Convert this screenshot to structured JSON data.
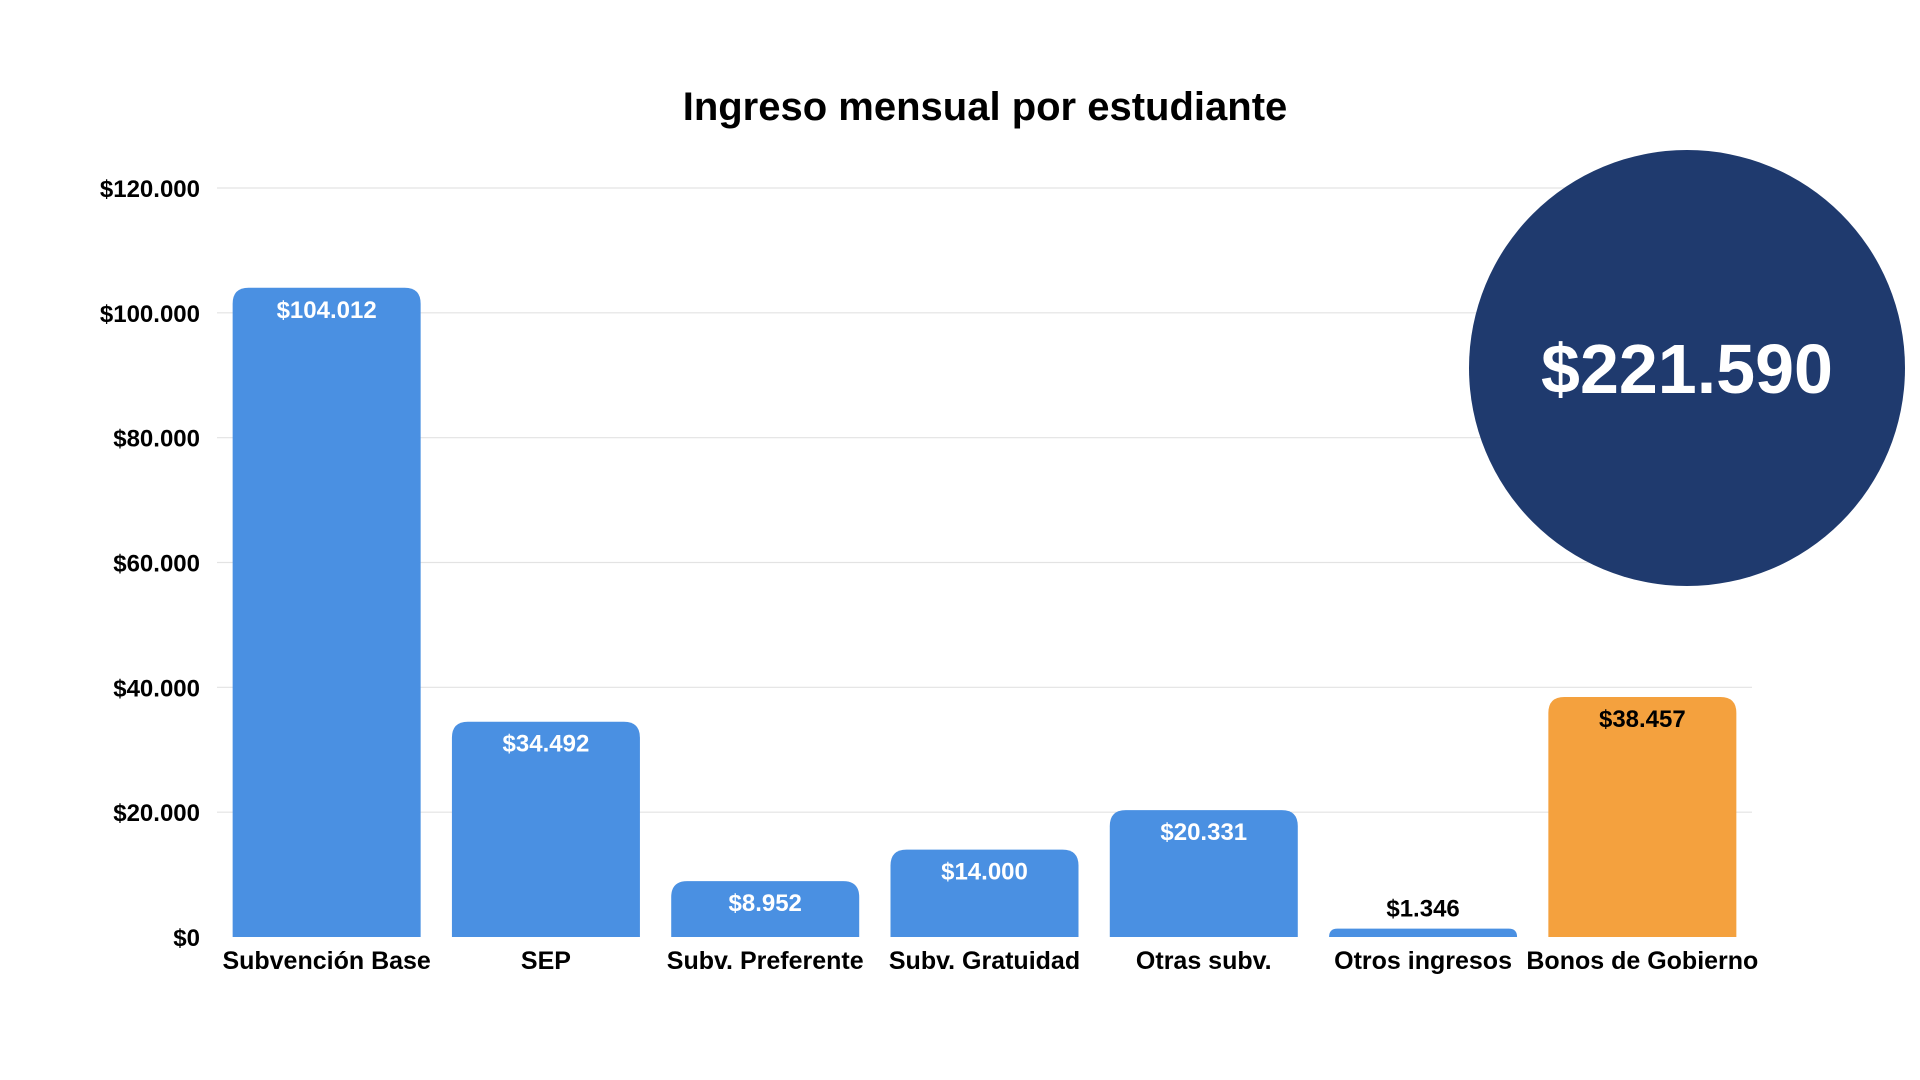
{
  "chart_data": {
    "type": "bar",
    "title": "Ingreso mensual por estudiante",
    "xlabel": "",
    "ylabel": "",
    "ylim": [
      0,
      120000
    ],
    "yticks": [
      "$0",
      "$20.000",
      "$40.000",
      "$60.000",
      "$80.000",
      "$100.000",
      "$120.000"
    ],
    "ytick_values": [
      0,
      20000,
      40000,
      60000,
      80000,
      100000,
      120000
    ],
    "grid": true,
    "categories": [
      "Subvención Base",
      "SEP",
      "Subv. Preferente",
      "Subv. Gratuidad",
      "Otras subv.",
      "Otros ingresos",
      "Bonos de Gobierno"
    ],
    "values": [
      104012,
      34492,
      8952,
      14000,
      20331,
      1346,
      38457
    ],
    "data_labels": [
      "$104.012",
      "$34.492",
      "$8.952",
      "$14.000",
      "$20.331",
      "$1.346",
      "$38.457"
    ],
    "bar_colors": [
      "#4A90E2",
      "#4A90E2",
      "#4A90E2",
      "#4A90E2",
      "#4A90E2",
      "#4A90E2",
      "#F4A13E"
    ],
    "label_colors": [
      "#ffffff",
      "#ffffff",
      "#ffffff",
      "#ffffff",
      "#ffffff",
      "#000000",
      "#000000"
    ],
    "total_badge": {
      "text": "$221.590",
      "color": "#1F3A6E"
    }
  }
}
